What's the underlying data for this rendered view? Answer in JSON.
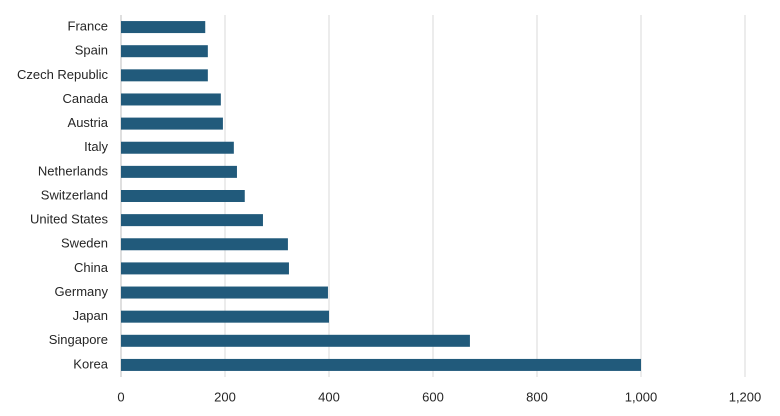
{
  "chart_data": {
    "type": "hbar",
    "categories": [
      "France",
      "Spain",
      "Czech Republic",
      "Canada",
      "Austria",
      "Italy",
      "Netherlands",
      "Switzerland",
      "United States",
      "Sweden",
      "China",
      "Germany",
      "Japan",
      "Singapore",
      "Korea"
    ],
    "values": [
      162,
      167,
      167,
      192,
      196,
      217,
      223,
      238,
      273,
      321,
      323,
      398,
      400,
      671,
      1000
    ],
    "color": "#215a7b",
    "xlim": [
      0,
      1200
    ],
    "xticks": [
      0,
      200,
      400,
      600,
      800,
      {
        "value": 1000,
        "label": "1,000"
      },
      {
        "value": 1200,
        "label": "1,200"
      }
    ],
    "grid": true
  }
}
